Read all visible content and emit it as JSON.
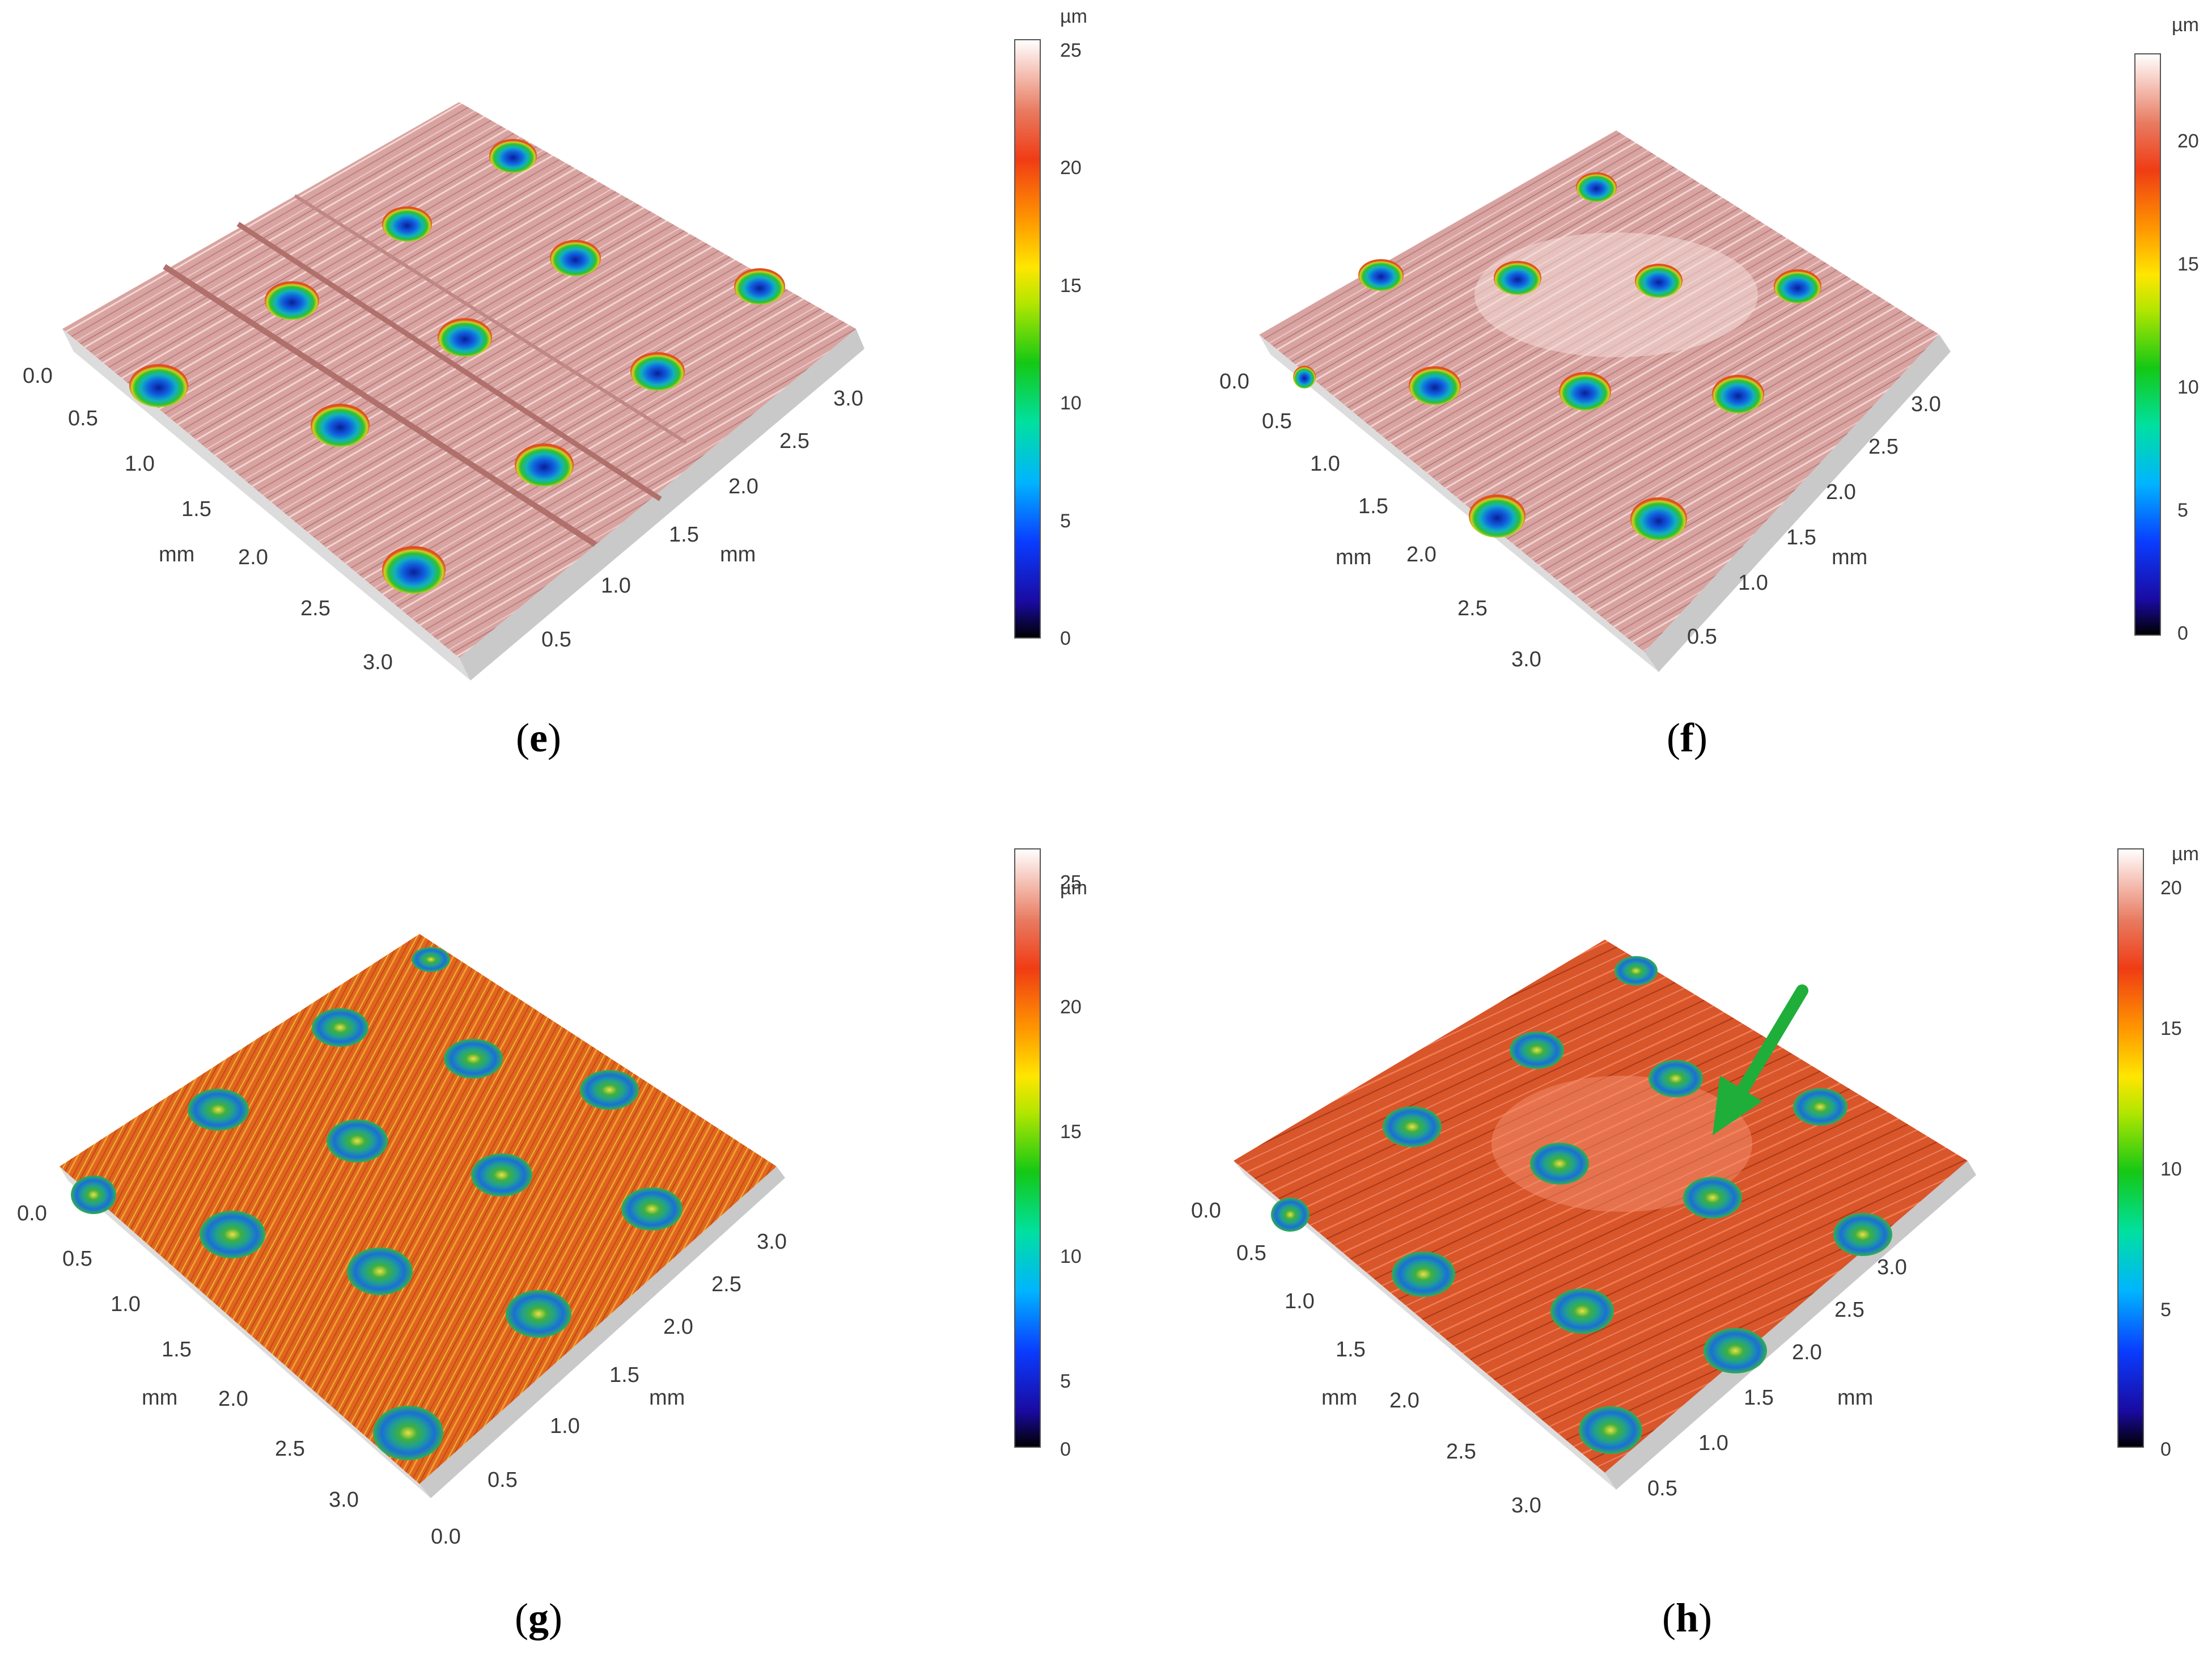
{
  "panels": [
    {
      "id": "e",
      "caption_letter": "e",
      "unit": "µm",
      "colorbar_ticks": [
        "25",
        "20",
        "15",
        "10",
        "5",
        "0"
      ],
      "left_axis_ticks": [
        "0.0",
        "0.5",
        "1.0",
        "1.5",
        "2.0",
        "2.5",
        "3.0"
      ],
      "left_axis_label": "mm",
      "right_axis_ticks": [
        "0.5",
        "1.0",
        "1.5",
        "2.0",
        "2.5",
        "3.0"
      ],
      "right_axis_label": "mm",
      "surface_style": "pink"
    },
    {
      "id": "f",
      "caption_letter": "f",
      "unit": "µm",
      "colorbar_ticks": [
        "20",
        "15",
        "10",
        "5",
        "0"
      ],
      "left_axis_ticks": [
        "0.0",
        "0.5",
        "1.0",
        "1.5",
        "2.0",
        "2.5",
        "3.0"
      ],
      "left_axis_label": "mm",
      "right_axis_ticks": [
        "0.5",
        "1.0",
        "1.5",
        "2.0",
        "2.5",
        "3.0"
      ],
      "right_axis_label": "mm",
      "surface_style": "pink"
    },
    {
      "id": "g",
      "caption_letter": "g",
      "unit": "µm",
      "colorbar_ticks": [
        "25",
        "20",
        "15",
        "10",
        "5",
        "0"
      ],
      "left_axis_ticks": [
        "0.0",
        "0.5",
        "1.0",
        "1.5",
        "2.0",
        "2.5",
        "3.0"
      ],
      "left_axis_label": "mm",
      "right_axis_ticks": [
        "0.0",
        "0.5",
        "1.0",
        "1.5",
        "2.0",
        "2.5",
        "3.0"
      ],
      "right_axis_label": "mm",
      "surface_style": "orange"
    },
    {
      "id": "h",
      "caption_letter": "h",
      "unit": "µm",
      "colorbar_ticks": [
        "20",
        "15",
        "10",
        "5",
        "0"
      ],
      "left_axis_ticks": [
        "0.0",
        "0.5",
        "1.0",
        "1.5",
        "2.0",
        "2.5",
        "3.0"
      ],
      "left_axis_label": "mm",
      "right_axis_ticks": [
        "0.5",
        "1.0",
        "1.5",
        "2.0",
        "2.5",
        "3.0"
      ],
      "right_axis_label": "mm",
      "surface_style": "orange-red",
      "annotation": "green-arrow"
    }
  ],
  "colors": {
    "pink_surface": "#d9a6a3",
    "orange_surface": "#e0661f",
    "orange_red_surface": "#d9552a",
    "arrow_green": "#1fae3a"
  }
}
